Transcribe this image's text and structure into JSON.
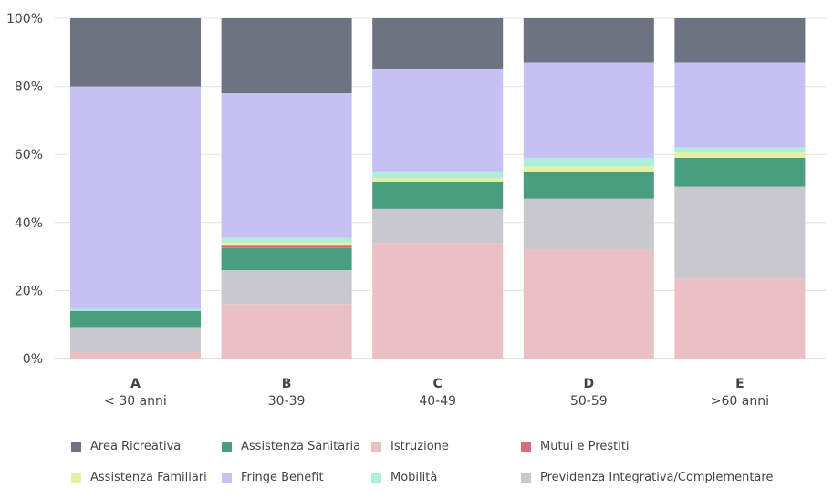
{
  "chart_data": {
    "type": "bar",
    "stacked": true,
    "normalized": true,
    "categories": [
      "A",
      "B",
      "C",
      "D",
      "E"
    ],
    "category_sublabels": [
      "< 30 anni",
      "30-39",
      "40-49",
      "50-59",
      ">60 anni"
    ],
    "ylim": [
      0,
      100
    ],
    "yticks": [
      "0%",
      "20%",
      "40%",
      "60%",
      "80%",
      "100%"
    ],
    "grid": true,
    "legend_position": "bottom",
    "series": [
      {
        "name": "Istruzione",
        "color": "#ebc0c5",
        "values": [
          2,
          16,
          34,
          32,
          23.5
        ]
      },
      {
        "name": "Previdenza Integrativa/Complementare",
        "color": "#c8c8ce",
        "values": [
          7,
          10,
          10,
          15,
          27
        ]
      },
      {
        "name": "Assistenza Sanitaria",
        "color": "#4a9e80",
        "values": [
          5,
          6.5,
          8,
          8,
          8.5
        ]
      },
      {
        "name": "Mutui e Prestiti",
        "color": "#d56e7a",
        "values": [
          0,
          0.7,
          0,
          0,
          0
        ]
      },
      {
        "name": "Assistenza Familiari",
        "color": "#e4f0a2",
        "values": [
          0,
          1.0,
          1,
          1.5,
          1.5
        ]
      },
      {
        "name": "Mobilità",
        "color": "#aeefd9",
        "values": [
          0.5,
          1.3,
          2,
          2.5,
          1.5
        ]
      },
      {
        "name": "Fringe Benefit",
        "color": "#c5c2f3",
        "values": [
          65.5,
          42.5,
          30,
          28,
          25
        ]
      },
      {
        "name": "Area Ricreativa",
        "color": "#6d7380",
        "values": [
          20,
          22,
          15,
          13,
          13
        ]
      }
    ],
    "legend_rows": [
      [
        "Area Ricreativa",
        "Assistenza Sanitaria",
        "Istruzione",
        "Mutui e Prestiti"
      ],
      [
        "Assistenza Familiari",
        "Fringe Benefit",
        "Mobilità",
        "Previdenza Integrativa/Complementare"
      ]
    ]
  }
}
